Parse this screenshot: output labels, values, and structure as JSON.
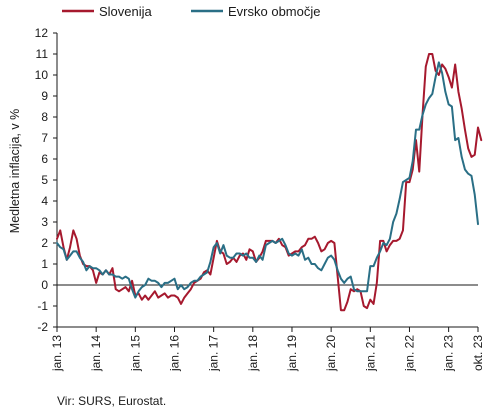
{
  "chart_data": {
    "type": "line",
    "ylabel": "Medletna inflacija, v %",
    "source": "Vir: SURS, Eurostat.",
    "ylim": [
      -2,
      12
    ],
    "yticks": [
      -2,
      -1,
      0,
      1,
      2,
      3,
      4,
      5,
      6,
      7,
      8,
      9,
      10,
      11,
      12
    ],
    "x_range": [
      "2013-01",
      "2023-10"
    ],
    "x_ticks": [
      {
        "label": "jan. 13",
        "date": "2013-01"
      },
      {
        "label": "jan. 14",
        "date": "2014-01"
      },
      {
        "label": "jan. 15",
        "date": "2015-01"
      },
      {
        "label": "jan. 16",
        "date": "2016-01"
      },
      {
        "label": "jan. 17",
        "date": "2017-01"
      },
      {
        "label": "jan. 18",
        "date": "2018-01"
      },
      {
        "label": "jan. 19",
        "date": "2019-01"
      },
      {
        "label": "jan. 20",
        "date": "2020-01"
      },
      {
        "label": "jan. 21",
        "date": "2021-01"
      },
      {
        "label": "jan. 22",
        "date": "2022-01"
      },
      {
        "label": "jan. 23",
        "date": "2023-01"
      },
      {
        "label": "okt. 23",
        "date": "2023-10"
      }
    ],
    "grid": false,
    "zero_line": true,
    "legend_position": "top",
    "series": [
      {
        "name": "Slovenija",
        "color": "#a6192e",
        "start": "2013-01",
        "values": [
          2.2,
          2.6,
          1.8,
          1.2,
          1.8,
          2.6,
          2.2,
          1.4,
          1.0,
          0.9,
          0.9,
          0.7,
          0.1,
          0.6,
          0.5,
          0.7,
          0.5,
          0.8,
          -0.2,
          -0.3,
          -0.2,
          -0.1,
          -0.3,
          0.2,
          -0.5,
          -0.4,
          -0.7,
          -0.5,
          -0.7,
          -0.5,
          -0.3,
          -0.6,
          -0.5,
          -0.4,
          -0.6,
          -0.5,
          -0.5,
          -0.6,
          -0.9,
          -0.6,
          -0.4,
          -0.2,
          0.1,
          0.2,
          0.3,
          0.6,
          0.7,
          0.5,
          1.3,
          2.1,
          1.6,
          1.5,
          1.0,
          1.1,
          1.3,
          1.1,
          1.4,
          1.5,
          1.2,
          1.7,
          1.6,
          1.1,
          1.3,
          1.6,
          2.1,
          2.1,
          2.1,
          2.0,
          2.2,
          1.9,
          1.8,
          1.4,
          1.5,
          1.6,
          1.6,
          1.8,
          1.9,
          2.2,
          2.2,
          2.3,
          2.0,
          1.6,
          1.7,
          2.0,
          2.1,
          2.0,
          0.4,
          -1.2,
          -1.2,
          -0.8,
          -0.2,
          -0.3,
          -0.2,
          -0.3,
          -1.0,
          -1.1,
          -0.7,
          -0.9,
          0.1,
          2.1,
          2.1,
          1.6,
          1.9,
          2.1,
          2.1,
          2.2,
          2.6,
          4.9,
          4.9,
          5.5,
          6.9,
          5.4,
          8.1,
          10.4,
          11.0,
          11.0,
          10.2,
          10.0,
          10.5,
          10.3,
          9.9,
          9.4,
          10.5,
          9.2,
          8.4,
          7.4,
          6.5,
          6.1,
          6.2,
          7.5,
          6.9
        ]
      },
      {
        "name": "Evrsko območje",
        "color": "#2a6f86",
        "start": "2013-01",
        "values": [
          2.0,
          1.8,
          1.7,
          1.2,
          1.4,
          1.6,
          1.6,
          1.3,
          1.1,
          0.7,
          0.9,
          0.8,
          0.8,
          0.7,
          0.5,
          0.7,
          0.5,
          0.5,
          0.4,
          0.4,
          0.3,
          0.4,
          0.3,
          -0.2,
          -0.6,
          -0.3,
          -0.1,
          0.0,
          0.3,
          0.2,
          0.2,
          0.1,
          -0.1,
          0.1,
          0.1,
          0.2,
          0.3,
          -0.2,
          0.0,
          -0.2,
          -0.1,
          0.1,
          0.2,
          0.2,
          0.4,
          0.5,
          0.6,
          1.1,
          1.8,
          2.0,
          1.5,
          1.9,
          1.4,
          1.3,
          1.3,
          1.5,
          1.5,
          1.4,
          1.5,
          1.3,
          1.3,
          1.1,
          1.4,
          1.2,
          1.9,
          2.0,
          2.1,
          2.0,
          2.1,
          2.2,
          1.9,
          1.5,
          1.4,
          1.5,
          1.4,
          1.7,
          1.2,
          1.3,
          1.0,
          1.0,
          0.8,
          0.7,
          1.0,
          1.3,
          1.4,
          1.2,
          0.7,
          0.3,
          0.1,
          0.3,
          0.4,
          -0.2,
          -0.3,
          -0.3,
          -0.3,
          -0.3,
          0.9,
          0.9,
          1.3,
          1.6,
          2.0,
          1.9,
          2.2,
          3.0,
          3.4,
          4.1,
          4.9,
          5.0,
          5.1,
          5.9,
          7.4,
          7.4,
          8.1,
          8.6,
          8.9,
          9.1,
          9.9,
          10.6,
          10.1,
          9.2,
          8.6,
          8.5,
          6.9,
          7.0,
          6.1,
          5.5,
          5.3,
          5.2,
          4.3,
          2.9
        ]
      }
    ]
  }
}
